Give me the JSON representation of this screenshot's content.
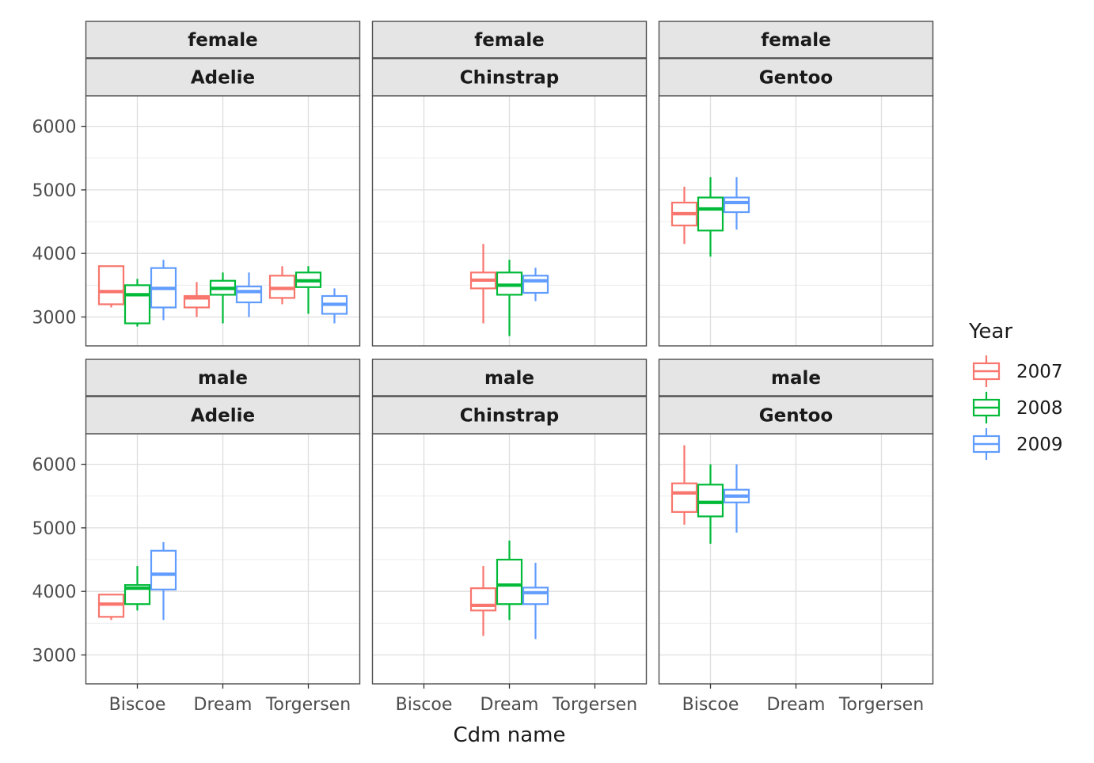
{
  "chart_data": {
    "type": "boxplot",
    "xlabel": "Cdm name",
    "ylabel": "",
    "categories": [
      "Biscoe",
      "Dream",
      "Torgersen"
    ],
    "y_ticks": [
      3000,
      4000,
      5000,
      6000
    ],
    "ylim": [
      2550,
      6500
    ],
    "grid": true,
    "legend": {
      "title": "Year",
      "position": "right",
      "entries": [
        {
          "label": "2007",
          "color": "#F8766D"
        },
        {
          "label": "2008",
          "color": "#00BA38"
        },
        {
          "label": "2009",
          "color": "#619CFF"
        }
      ]
    },
    "facet_rows": [
      "female",
      "male"
    ],
    "facet_cols": [
      "Adelie",
      "Chinstrap",
      "Gentoo"
    ],
    "panels": [
      {
        "row": "female",
        "col": "Adelie",
        "boxes": [
          {
            "category": "Biscoe",
            "year": "2007",
            "min": 3150,
            "q1": 3200,
            "median": 3400,
            "q3": 3800,
            "max": 3800
          },
          {
            "category": "Biscoe",
            "year": "2008",
            "min": 2850,
            "q1": 2900,
            "median": 3350,
            "q3": 3500,
            "max": 3600
          },
          {
            "category": "Biscoe",
            "year": "2009",
            "min": 2950,
            "q1": 3150,
            "median": 3450,
            "q3": 3770,
            "max": 3900
          },
          {
            "category": "Dream",
            "year": "2007",
            "min": 3000,
            "q1": 3150,
            "median": 3300,
            "q3": 3330,
            "max": 3550
          },
          {
            "category": "Dream",
            "year": "2008",
            "min": 2900,
            "q1": 3350,
            "median": 3450,
            "q3": 3570,
            "max": 3700
          },
          {
            "category": "Dream",
            "year": "2009",
            "min": 3000,
            "q1": 3230,
            "median": 3400,
            "q3": 3480,
            "max": 3700
          },
          {
            "category": "Torgersen",
            "year": "2007",
            "min": 3200,
            "q1": 3300,
            "median": 3450,
            "q3": 3650,
            "max": 3800
          },
          {
            "category": "Torgersen",
            "year": "2008",
            "min": 3050,
            "q1": 3470,
            "median": 3570,
            "q3": 3700,
            "max": 3800
          },
          {
            "category": "Torgersen",
            "year": "2009",
            "min": 2900,
            "q1": 3050,
            "median": 3200,
            "q3": 3330,
            "max": 3450
          }
        ]
      },
      {
        "row": "female",
        "col": "Chinstrap",
        "boxes": [
          {
            "category": "Dream",
            "year": "2007",
            "min": 2900,
            "q1": 3450,
            "median": 3580,
            "q3": 3700,
            "max": 4150
          },
          {
            "category": "Dream",
            "year": "2008",
            "min": 2700,
            "q1": 3350,
            "median": 3500,
            "q3": 3700,
            "max": 3900
          },
          {
            "category": "Dream",
            "year": "2009",
            "min": 3250,
            "q1": 3380,
            "median": 3570,
            "q3": 3650,
            "max": 3775
          }
        ]
      },
      {
        "row": "female",
        "col": "Gentoo",
        "boxes": [
          {
            "category": "Biscoe",
            "year": "2007",
            "min": 4150,
            "q1": 4440,
            "median": 4625,
            "q3": 4800,
            "max": 5050
          },
          {
            "category": "Biscoe",
            "year": "2008",
            "min": 3950,
            "q1": 4360,
            "median": 4700,
            "q3": 4880,
            "max": 5200
          },
          {
            "category": "Biscoe",
            "year": "2009",
            "min": 4375,
            "q1": 4650,
            "median": 4800,
            "q3": 4880,
            "max": 5200
          }
        ]
      },
      {
        "row": "male",
        "col": "Adelie",
        "boxes": [
          {
            "category": "Biscoe",
            "year": "2007",
            "min": 3550,
            "q1": 3600,
            "median": 3800,
            "q3": 3950,
            "max": 3950
          },
          {
            "category": "Biscoe",
            "year": "2008",
            "min": 3700,
            "q1": 3800,
            "median": 4050,
            "q3": 4100,
            "max": 4400
          },
          {
            "category": "Biscoe",
            "year": "2009",
            "min": 3550,
            "q1": 4030,
            "median": 4270,
            "q3": 4640,
            "max": 4775
          }
        ]
      },
      {
        "row": "male",
        "col": "Chinstrap",
        "boxes": [
          {
            "category": "Dream",
            "year": "2007",
            "min": 3300,
            "q1": 3700,
            "median": 3780,
            "q3": 4050,
            "max": 4400
          },
          {
            "category": "Dream",
            "year": "2008",
            "min": 3550,
            "q1": 3800,
            "median": 4100,
            "q3": 4500,
            "max": 4800
          },
          {
            "category": "Dream",
            "year": "2009",
            "min": 3250,
            "q1": 3800,
            "median": 3980,
            "q3": 4060,
            "max": 4450
          }
        ]
      },
      {
        "row": "male",
        "col": "Gentoo",
        "boxes": [
          {
            "category": "Biscoe",
            "year": "2007",
            "min": 5050,
            "q1": 5250,
            "median": 5550,
            "q3": 5700,
            "max": 6300
          },
          {
            "category": "Biscoe",
            "year": "2008",
            "min": 4750,
            "q1": 5180,
            "median": 5400,
            "q3": 5680,
            "max": 6000
          },
          {
            "category": "Biscoe",
            "year": "2009",
            "min": 4925,
            "q1": 5400,
            "median": 5500,
            "q3": 5600,
            "max": 6000
          }
        ]
      }
    ]
  }
}
